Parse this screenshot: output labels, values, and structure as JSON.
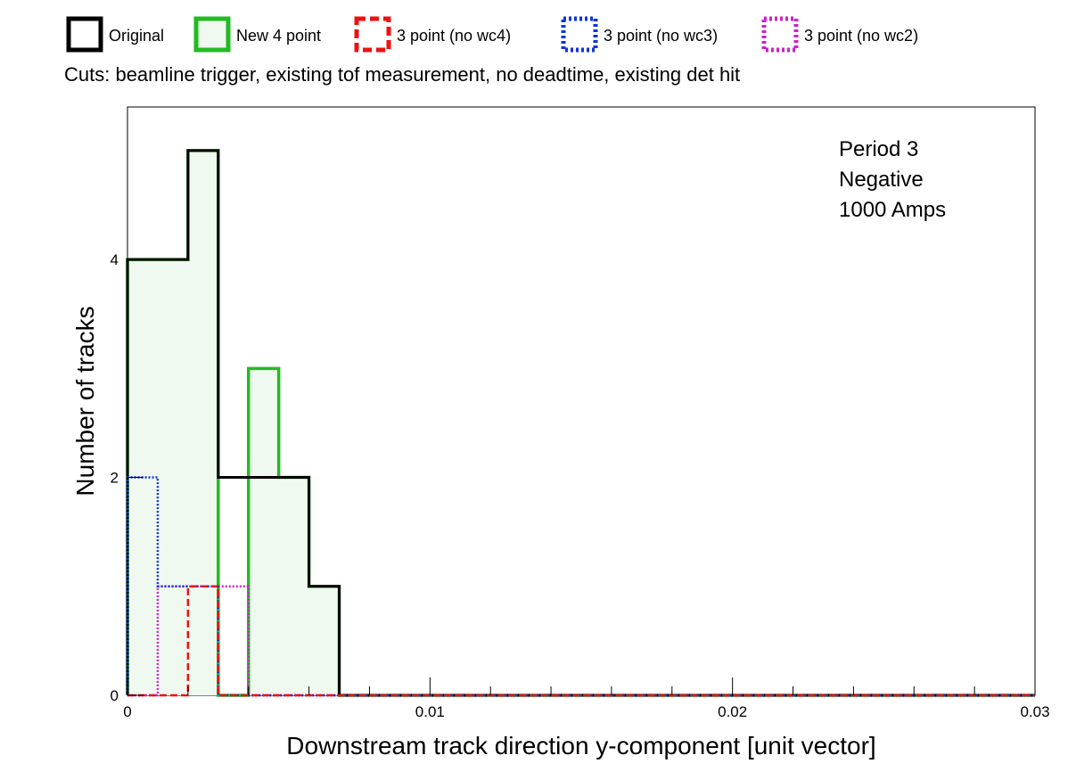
{
  "chart_data": {
    "type": "histogram",
    "title": "",
    "cuts_label": "Cuts: beamline trigger, existing tof measurement, no deadtime, existing det hit",
    "annotation": [
      "Period 3",
      "Negative",
      "1000 Amps"
    ],
    "xlabel": "Downstream track direction y-component [unit vector]",
    "ylabel": "Number of tracks",
    "xlim": [
      0,
      0.03
    ],
    "ylim": [
      0,
      5.4
    ],
    "x_ticks": [
      0,
      0.01,
      0.02,
      0.03
    ],
    "x_tick_labels": [
      "0",
      "0.01",
      "0.02",
      "0.03"
    ],
    "y_ticks": [
      0,
      2,
      4
    ],
    "y_tick_labels": [
      "0",
      "2",
      "4"
    ],
    "bin_width": 0.001,
    "grid": false,
    "legend_position": "top",
    "series": [
      {
        "name": "Original",
        "color": "#000000",
        "style": "solid",
        "values": [
          4,
          4,
          5,
          2,
          2,
          2,
          1
        ]
      },
      {
        "name": "New 4 point",
        "color": "#22bb22",
        "fill": "#f0f9f0",
        "style": "solid",
        "values": [
          4,
          4,
          5,
          0,
          3,
          2,
          1
        ]
      },
      {
        "name": "3 point (no wc4)",
        "color": "#ee1111",
        "style": "dashed",
        "values": [
          0,
          0,
          1,
          0,
          0,
          0,
          0
        ]
      },
      {
        "name": "3 point (no wc3)",
        "color": "#1133dd",
        "style": "dotted",
        "values": [
          2,
          1,
          1,
          0,
          0,
          0,
          0
        ]
      },
      {
        "name": "3 point (no wc2)",
        "color": "#cc22cc",
        "style": "dotted",
        "values": [
          0,
          1,
          1,
          1,
          0,
          0,
          0
        ]
      }
    ]
  }
}
